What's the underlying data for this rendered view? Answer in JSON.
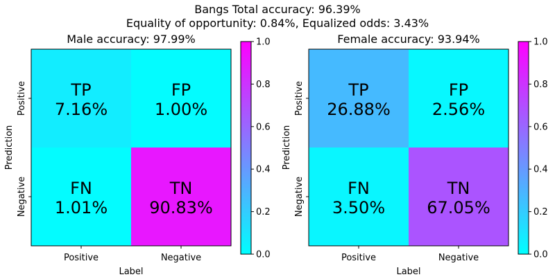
{
  "figure": {
    "title_line1": "Bangs   Total accuracy: 96.39%",
    "title_line2": "Equality of opportunity: 0.84%, Equalized odds: 3.43%"
  },
  "chart_data": [
    {
      "type": "heatmap",
      "title": "Male accuracy: 97.99%",
      "xlabel": "Label",
      "ylabel": "Prediction",
      "x_categories": [
        "Positive",
        "Negative"
      ],
      "y_categories": [
        "Positive",
        "Negative"
      ],
      "cells": [
        {
          "row": 0,
          "col": 0,
          "name": "TP",
          "value": 0.0716,
          "text": "7.16%"
        },
        {
          "row": 0,
          "col": 1,
          "name": "FP",
          "value": 0.01,
          "text": "1.00%"
        },
        {
          "row": 1,
          "col": 0,
          "name": "FN",
          "value": 0.0101,
          "text": "1.01%"
        },
        {
          "row": 1,
          "col": 1,
          "name": "TN",
          "value": 0.9083,
          "text": "90.83%"
        }
      ],
      "colorbar": {
        "colormap": "cool",
        "range": [
          0,
          1
        ],
        "ticks": [
          "0.0",
          "0.2",
          "0.4",
          "0.6",
          "0.8",
          "1.0"
        ]
      }
    },
    {
      "type": "heatmap",
      "title": "Female accuracy: 93.94%",
      "xlabel": "Label",
      "ylabel": "Prediction",
      "x_categories": [
        "Positive",
        "Negative"
      ],
      "y_categories": [
        "Positive",
        "Negative"
      ],
      "cells": [
        {
          "row": 0,
          "col": 0,
          "name": "TP",
          "value": 0.2688,
          "text": "26.88%"
        },
        {
          "row": 0,
          "col": 1,
          "name": "FP",
          "value": 0.0256,
          "text": "2.56%"
        },
        {
          "row": 1,
          "col": 0,
          "name": "FN",
          "value": 0.035,
          "text": "3.50%"
        },
        {
          "row": 1,
          "col": 1,
          "name": "TN",
          "value": 0.6705,
          "text": "67.05%"
        }
      ],
      "colorbar": {
        "colormap": "cool",
        "range": [
          0,
          1
        ],
        "ticks": [
          "0.0",
          "0.2",
          "0.4",
          "0.6",
          "0.8",
          "1.0"
        ]
      }
    }
  ]
}
